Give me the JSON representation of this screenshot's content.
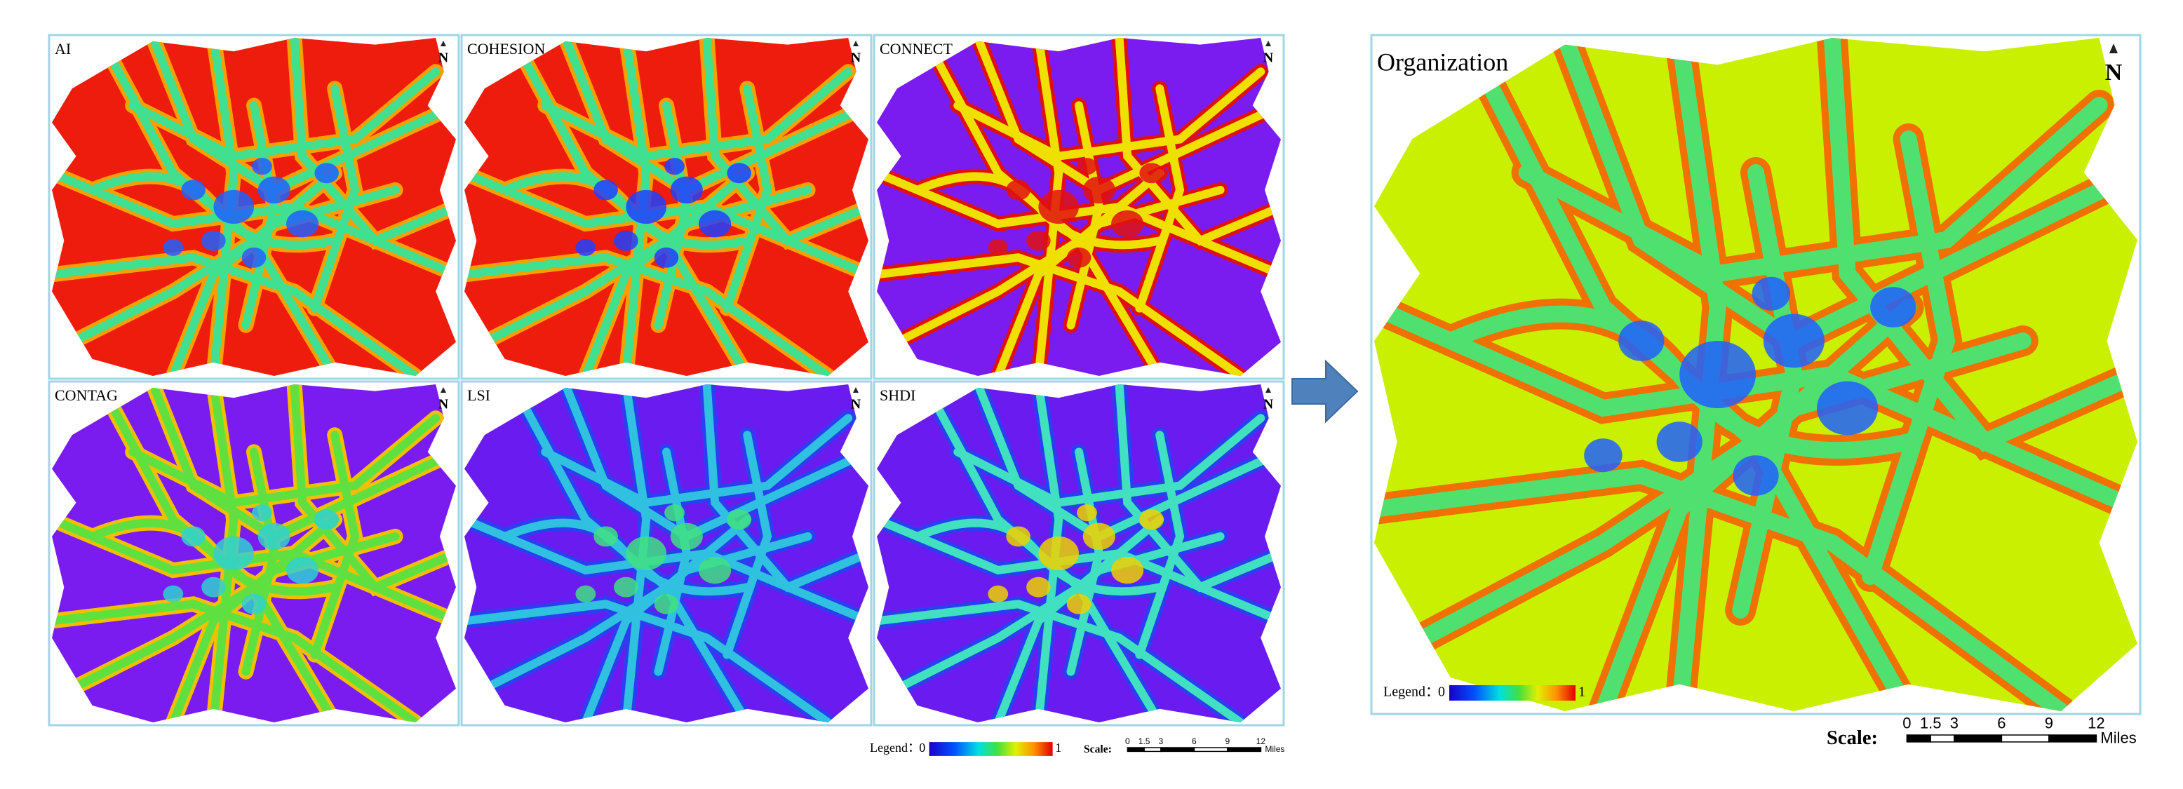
{
  "panels": [
    {
      "label": "AI"
    },
    {
      "label": "COHESION"
    },
    {
      "label": "CONNECT"
    },
    {
      "label": "CONTAG"
    },
    {
      "label": "LSI"
    },
    {
      "label": "SHDI"
    }
  ],
  "result": {
    "label": "Organization"
  },
  "north_label": "N",
  "legend": {
    "label": "Legend：",
    "min": "0",
    "max": "1"
  },
  "scale": {
    "label": "Scale:",
    "ticks": [
      "0",
      "1.5",
      "3",
      "6",
      "9",
      "12"
    ],
    "unit": "Miles"
  }
}
